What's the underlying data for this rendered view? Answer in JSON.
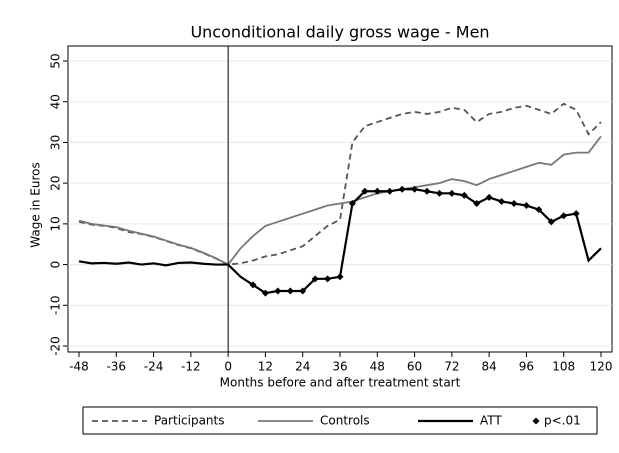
{
  "chart_data": {
    "type": "line",
    "title": "Unconditional daily gross wage - Men",
    "x_label": "Months before and after treatment start",
    "y_label": "Wage in Euros",
    "x": [
      -48,
      -44,
      -40,
      -36,
      -32,
      -28,
      -24,
      -20,
      -16,
      -12,
      -8,
      -4,
      0,
      4,
      8,
      12,
      16,
      20,
      24,
      28,
      32,
      36,
      40,
      44,
      48,
      52,
      56,
      60,
      64,
      68,
      72,
      76,
      80,
      84,
      88,
      92,
      96,
      100,
      104,
      108,
      112,
      116,
      120
    ],
    "series": [
      {
        "name": "Participants",
        "color": "#555555",
        "dash": true,
        "marker": false,
        "values": [
          10.5,
          9.8,
          9.5,
          9,
          8,
          7.5,
          6.8,
          5.8,
          4.8,
          4,
          2.8,
          1.5,
          0,
          0.3,
          1,
          2,
          2.5,
          3.5,
          4.5,
          7,
          9.5,
          11,
          30,
          34,
          35,
          36,
          37,
          37.5,
          37,
          37.5,
          38.5,
          38,
          35,
          37,
          37.5,
          38.5,
          39,
          38,
          37,
          39.5,
          38,
          32,
          35
        ]
      },
      {
        "name": "Controls",
        "color": "#777777",
        "dash": false,
        "marker": false,
        "values": [
          10.8,
          10,
          9.6,
          9.2,
          8.3,
          7.6,
          6.9,
          5.9,
          4.9,
          4.1,
          2.9,
          1.6,
          0,
          4,
          7,
          9.5,
          10.5,
          11.5,
          12.5,
          13.5,
          14.5,
          15,
          15.5,
          16.5,
          17.5,
          18,
          18.5,
          19,
          19.5,
          20,
          21,
          20.5,
          19.5,
          21,
          22,
          23,
          24,
          25,
          24.5,
          27,
          27.5,
          27.5,
          31.5
        ]
      },
      {
        "name": "ATT",
        "color": "#000000",
        "dash": false,
        "marker": false,
        "values": [
          0.8,
          0.3,
          0.4,
          0.2,
          0.5,
          0,
          0.3,
          -0.2,
          0.4,
          0.5,
          0.2,
          0,
          0,
          -3,
          -5,
          -7,
          -6.5,
          -6.5,
          -6.5,
          -3.5,
          -3.5,
          -3,
          15,
          18,
          18,
          18,
          18.5,
          18.5,
          18,
          17.5,
          17.5,
          17,
          15,
          16.5,
          15.5,
          15,
          14.5,
          13.5,
          10.5,
          12,
          12.5,
          1,
          4
        ]
      },
      {
        "name": "p<.01",
        "color": "#000000",
        "dash": false,
        "marker": true,
        "values": [
          null,
          null,
          null,
          null,
          null,
          null,
          null,
          null,
          null,
          null,
          null,
          null,
          null,
          null,
          -5,
          -7,
          -6.5,
          -6.5,
          -6.5,
          -3.5,
          -3.5,
          -3,
          15,
          18,
          18,
          18,
          18.5,
          18.5,
          18,
          17.5,
          17.5,
          17,
          15,
          16.5,
          15.5,
          15,
          14.5,
          13.5,
          10.5,
          12,
          12.5,
          null,
          null
        ]
      }
    ],
    "xlim": [
      -48,
      120
    ],
    "xticks": [
      -48,
      -36,
      -24,
      -12,
      0,
      12,
      24,
      36,
      48,
      60,
      72,
      84,
      96,
      108,
      120
    ],
    "ylim": [
      -20,
      50
    ],
    "yticks": [
      -20,
      -10,
      0,
      10,
      20,
      30,
      40,
      50
    ],
    "xline": 0,
    "grid": true,
    "legend": "bottom"
  }
}
